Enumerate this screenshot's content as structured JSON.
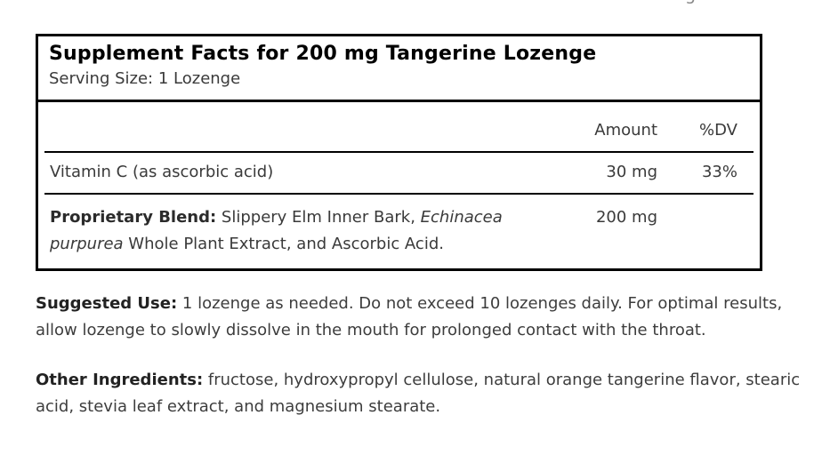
{
  "page": {
    "clipped_text_fragment": "g"
  },
  "colors": {
    "border": "#000000",
    "title_text": "#000000",
    "body_text": "#3d3d3d",
    "table_text": "#3a3a3a",
    "bold_lead_text": "#222222",
    "background": "#ffffff"
  },
  "facts_box": {
    "title": "Supplement Facts for 200 mg Tangerine Lozenge",
    "serving_size": "Serving Size: 1 Lozenge",
    "table": {
      "headers": {
        "amount": "Amount",
        "dv": "%DV"
      },
      "rows": [
        {
          "name": "Vitamin C (as ascorbic acid)",
          "amount": "30 mg",
          "dv": "33%"
        }
      ],
      "blend_row": {
        "label": "Proprietary Blend:",
        "text_before_italic": " Slippery Elm Inner Bark, ",
        "italic": "Echinacea purpurea",
        "text_after_italic": " Whole Plant Extract, and Ascorbic Acid.",
        "amount": "200 mg",
        "dv": ""
      }
    }
  },
  "paragraphs": {
    "suggested_use": {
      "label": "Suggested Use:",
      "text": " 1 lozenge as needed. Do not exceed 10 lozenges daily. For optimal results, allow lozenge to slowly dissolve in the mouth for prolonged contact with the throat."
    },
    "other_ingredients": {
      "label": "Other Ingredients:",
      "text": " fructose, hydroxypropyl cellulose, natural orange tangerine flavor, stearic acid, stevia leaf extract, and magnesium stearate."
    }
  }
}
